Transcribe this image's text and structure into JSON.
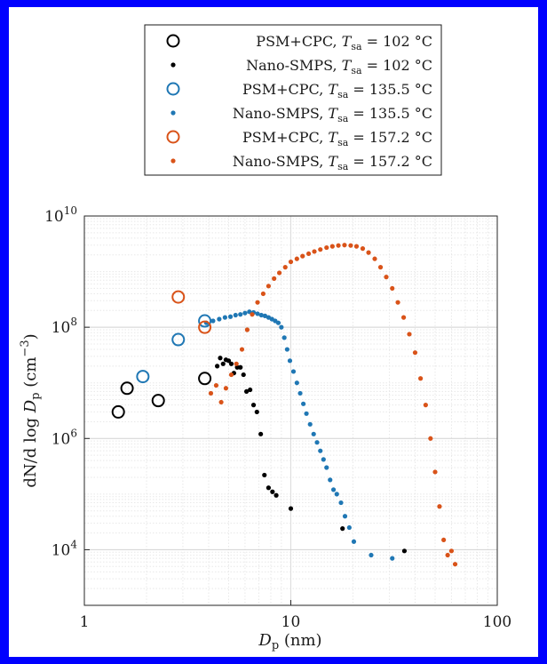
{
  "colors": {
    "border": "#0000ff",
    "psm_102": "#000000",
    "smps_102": "#000000",
    "psm_135": "#1f77b4",
    "smps_135": "#1f77b4",
    "psm_157": "#d95319",
    "smps_157": "#d95319"
  },
  "chart_data": {
    "type": "scatter",
    "title": "",
    "xlabel": "D_p (nm)",
    "xlabel_main": "D",
    "xlabel_sub": "p",
    "xlabel_unit": " (nm)",
    "ylabel": "dN/dlog D_p (cm^-3)",
    "ylabel_parts": {
      "prefix": "dN/d log ",
      "var": "D",
      "sub": "p",
      "unit_open": " (cm",
      "sup": "−3",
      "unit_close": ")"
    },
    "xscale": "log",
    "yscale": "log",
    "xlim": [
      1,
      100
    ],
    "ylim": [
      1000,
      10000000000
    ],
    "grid": true,
    "legend_position": "top-center",
    "x_ticks": [
      {
        "value": 1,
        "label": "1"
      },
      {
        "value": 10,
        "label": "10"
      },
      {
        "value": 100,
        "label": "100"
      }
    ],
    "y_ticks": [
      {
        "value": 10000,
        "base": "10",
        "exp": "4"
      },
      {
        "value": 1000000,
        "base": "10",
        "exp": "6"
      },
      {
        "value": 100000000,
        "base": "10",
        "exp": "8"
      },
      {
        "value": 10000000000,
        "base": "10",
        "exp": "10"
      }
    ],
    "series": [
      {
        "name": "PSM+CPC, T_sa = 102 °C",
        "label_main": "PSM+CPC, ",
        "label_var": "T",
        "label_sub": "sa",
        "label_eq": " = 102 °C",
        "marker": "open-circle",
        "color": "#000000",
        "x": [
          1.46,
          1.61,
          2.28,
          3.83
        ],
        "y": [
          3000000,
          8000000,
          4800000,
          12000000
        ]
      },
      {
        "name": "Nano-SMPS, T_sa = 102 °C",
        "label_main": "Nano-SMPS, ",
        "label_var": "T",
        "label_sub": "sa",
        "label_eq": " = 102 °C",
        "marker": "dot",
        "color": "#000000",
        "x": [
          4.4,
          4.55,
          4.7,
          4.85,
          5.0,
          5.15,
          5.3,
          5.5,
          5.7,
          5.9,
          6.1,
          6.35,
          6.6,
          6.85,
          7.15,
          7.45,
          7.8,
          8.15,
          8.5,
          10.0,
          17.8,
          35.5
        ],
        "y": [
          20000000,
          28000000,
          22000000,
          26000000,
          25000000,
          22000000,
          15000000,
          19000000,
          19000000,
          14000000,
          7000000,
          7500000,
          4000000,
          3000000,
          1200000,
          220000,
          130000,
          110000,
          95000,
          55000,
          24000,
          9500
        ]
      },
      {
        "name": "PSM+CPC, T_sa = 135.5 °C",
        "label_main": "PSM+CPC, ",
        "label_var": "T",
        "label_sub": "sa",
        "label_eq": " = 135.5 °C",
        "marker": "open-circle",
        "color": "#1f77b4",
        "x": [
          1.92,
          2.85,
          3.83
        ],
        "y": [
          13000000,
          60000000,
          130000000
        ]
      },
      {
        "name": "Nano-SMPS, T_sa = 135.5 °C",
        "label_main": "Nano-SMPS, ",
        "label_var": "T",
        "label_sub": "sa",
        "label_eq": " = 135.5 °C",
        "marker": "dot",
        "color": "#1f77b4",
        "x": [
          3.9,
          4.2,
          4.5,
          4.8,
          5.1,
          5.4,
          5.7,
          6.0,
          6.3,
          6.6,
          6.9,
          7.2,
          7.5,
          7.8,
          8.1,
          8.4,
          8.7,
          9.0,
          9.3,
          9.6,
          9.9,
          10.3,
          10.7,
          11.1,
          11.5,
          11.9,
          12.4,
          12.9,
          13.4,
          13.9,
          14.4,
          14.9,
          15.5,
          16.1,
          16.7,
          17.5,
          18.3,
          19.2,
          20.2,
          24.5,
          31.0
        ],
        "y": [
          120000000,
          130000000,
          140000000,
          150000000,
          155000000,
          165000000,
          170000000,
          180000000,
          190000000,
          185000000,
          175000000,
          165000000,
          160000000,
          150000000,
          140000000,
          130000000,
          120000000,
          100000000,
          65000000,
          40000000,
          25000000,
          16000000,
          10000000,
          6500000,
          4200000,
          2800000,
          1800000,
          1200000,
          850000,
          600000,
          420000,
          300000,
          180000,
          120000,
          100000,
          70000,
          40000,
          25000,
          14000,
          8000,
          7000
        ]
      },
      {
        "name": "PSM+CPC, T_sa = 157.2 °C",
        "label_main": "PSM+CPC, ",
        "label_var": "T",
        "label_sub": "sa",
        "label_eq": " = 157.2 °C",
        "marker": "open-circle",
        "color": "#d95319",
        "x": [
          2.85,
          3.83
        ],
        "y": [
          350000000,
          100000000
        ]
      },
      {
        "name": "Nano-SMPS, T_sa = 157.2 °C",
        "label_main": "Nano-SMPS, ",
        "label_var": "T",
        "label_sub": "sa",
        "label_eq": " = 157.2 °C",
        "marker": "dot",
        "color": "#d95319",
        "x": [
          4.1,
          4.35,
          4.6,
          4.85,
          5.15,
          5.45,
          5.8,
          6.15,
          6.5,
          6.9,
          7.35,
          7.8,
          8.3,
          8.8,
          9.4,
          10.0,
          10.7,
          11.4,
          12.2,
          13.0,
          13.9,
          14.9,
          15.9,
          17.0,
          18.2,
          19.5,
          20.8,
          22.3,
          23.8,
          25.5,
          27.2,
          29.0,
          31.0,
          33.0,
          35.2,
          37.5,
          40.0,
          42.5,
          45.0,
          47.5,
          50.0,
          52.5,
          55.0,
          57.5,
          60.0,
          62.5
        ],
        "y": [
          6500000,
          9000000,
          4500000,
          8000000,
          14000000,
          22000000,
          40000000,
          90000000,
          170000000,
          280000000,
          400000000,
          550000000,
          750000000,
          950000000,
          1200000000,
          1500000000,
          1700000000,
          1900000000,
          2100000000,
          2300000000,
          2500000000,
          2700000000,
          2850000000,
          2950000000,
          3000000000,
          2950000000,
          2850000000,
          2600000000,
          2200000000,
          1700000000,
          1200000000,
          800000000,
          500000000,
          280000000,
          150000000,
          75000000,
          35000000,
          12000000,
          4000000,
          1000000,
          250000,
          60000,
          15000,
          8000,
          9500,
          5500
        ]
      }
    ]
  }
}
